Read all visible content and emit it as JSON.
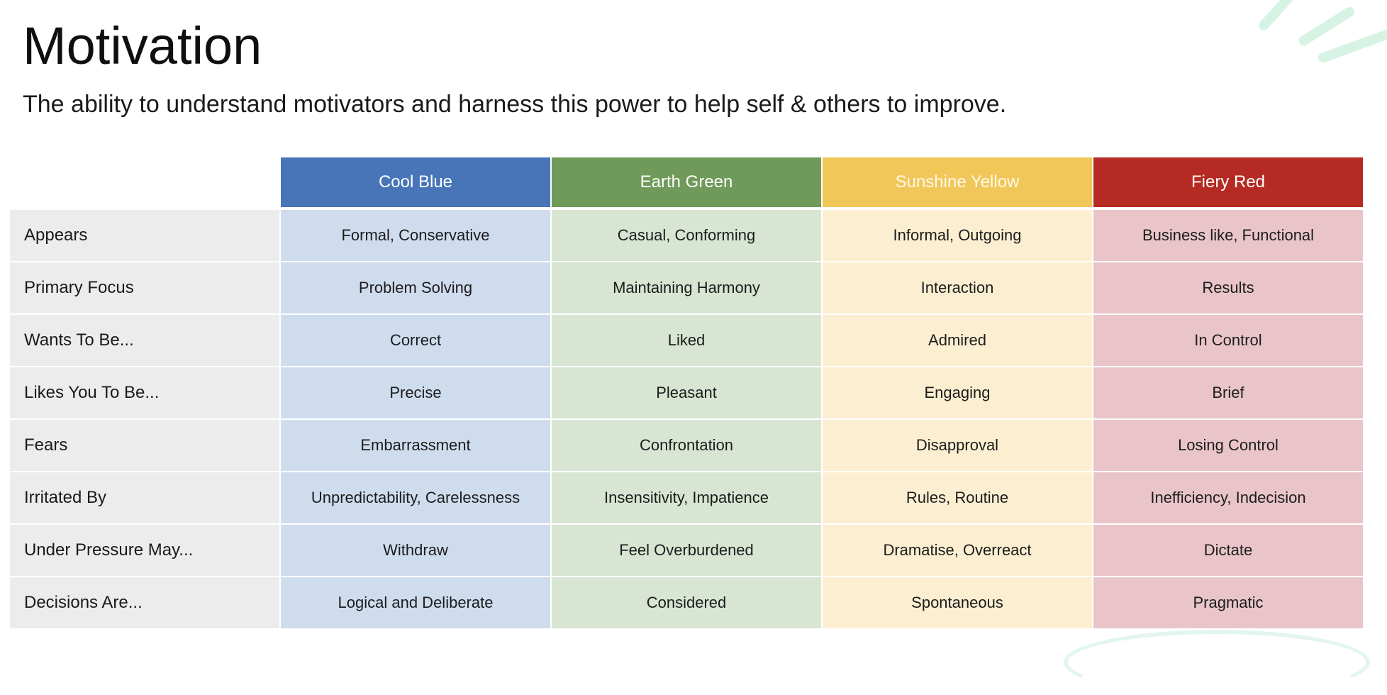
{
  "slide": {
    "title": "Motivation",
    "subtitle": "The ability to understand motivators and harness this power to help self & others to improve."
  },
  "table": {
    "columns": [
      {
        "label": "Cool Blue",
        "color": "#4875b8"
      },
      {
        "label": "Earth Green",
        "color": "#6f9a59"
      },
      {
        "label": "Sunshine Yellow",
        "color": "#f2c75a"
      },
      {
        "label": "Fiery Red",
        "color": "#b52a22"
      }
    ],
    "rows": [
      {
        "label": "Appears",
        "cells": [
          "Formal, Conservative",
          "Casual, Conforming",
          "Informal, Outgoing",
          "Business like, Functional"
        ]
      },
      {
        "label": "Primary Focus",
        "cells": [
          "Problem Solving",
          "Maintaining Harmony",
          "Interaction",
          "Results"
        ]
      },
      {
        "label": "Wants To Be...",
        "cells": [
          "Correct",
          "Liked",
          "Admired",
          "In Control"
        ]
      },
      {
        "label": "Likes You To Be...",
        "cells": [
          "Precise",
          "Pleasant",
          "Engaging",
          "Brief"
        ]
      },
      {
        "label": "Fears",
        "cells": [
          "Embarrassment",
          "Confrontation",
          "Disapproval",
          "Losing Control"
        ]
      },
      {
        "label": "Irritated By",
        "cells": [
          "Unpredictability, Carelessness",
          "Insensitivity, Impatience",
          "Rules, Routine",
          "Inefficiency, Indecision"
        ]
      },
      {
        "label": "Under Pressure May...",
        "cells": [
          "Withdraw",
          "Feel Overburdened",
          "Dramatise, Overreact",
          "Dictate"
        ]
      },
      {
        "label": "Decisions Are...",
        "cells": [
          "Logical and Deliberate",
          "Considered",
          "Spontaneous",
          "Pragmatic"
        ]
      }
    ]
  }
}
